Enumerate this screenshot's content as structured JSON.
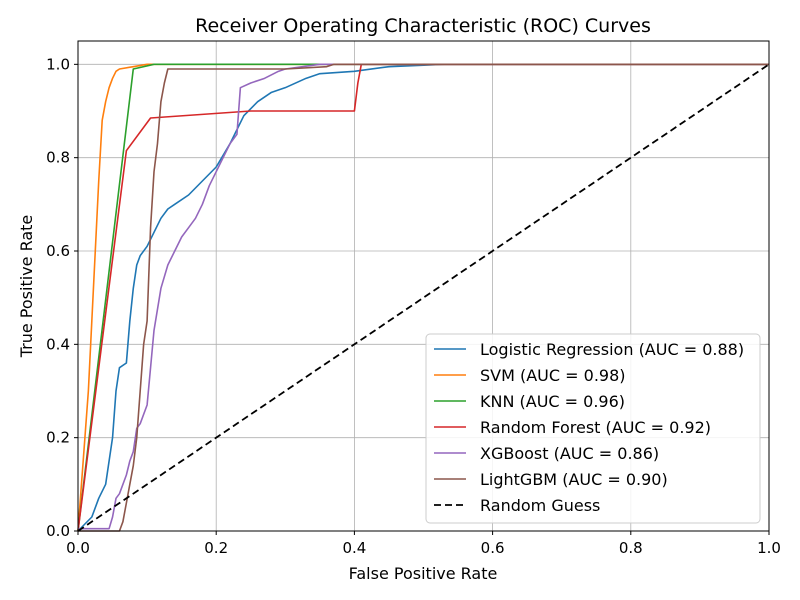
{
  "chart_data": {
    "type": "line",
    "title": "Receiver Operating Characteristic (ROC) Curves",
    "xlabel": "False Positive Rate",
    "ylabel": "True Positive Rate",
    "xlim": [
      0,
      1
    ],
    "ylim": [
      0,
      1.05
    ],
    "xticks": [
      "0.0",
      "0.2",
      "0.4",
      "0.6",
      "0.8",
      "1.0"
    ],
    "yticks": [
      "0.0",
      "0.2",
      "0.4",
      "0.6",
      "0.8",
      "1.0"
    ],
    "grid": true,
    "legend_position": "bottom-right",
    "series": [
      {
        "name": "Logistic Regression (AUC = 0.88)",
        "color": "#1f77b4",
        "dash": false,
        "points": [
          [
            0,
            0
          ],
          [
            0.02,
            0.03
          ],
          [
            0.03,
            0.07
          ],
          [
            0.04,
            0.1
          ],
          [
            0.05,
            0.2
          ],
          [
            0.055,
            0.3
          ],
          [
            0.06,
            0.35
          ],
          [
            0.07,
            0.36
          ],
          [
            0.075,
            0.45
          ],
          [
            0.08,
            0.52
          ],
          [
            0.085,
            0.57
          ],
          [
            0.09,
            0.59
          ],
          [
            0.1,
            0.61
          ],
          [
            0.11,
            0.64
          ],
          [
            0.12,
            0.67
          ],
          [
            0.13,
            0.69
          ],
          [
            0.14,
            0.7
          ],
          [
            0.16,
            0.72
          ],
          [
            0.18,
            0.75
          ],
          [
            0.2,
            0.78
          ],
          [
            0.22,
            0.83
          ],
          [
            0.24,
            0.89
          ],
          [
            0.26,
            0.92
          ],
          [
            0.28,
            0.94
          ],
          [
            0.3,
            0.95
          ],
          [
            0.33,
            0.97
          ],
          [
            0.35,
            0.98
          ],
          [
            0.4,
            0.985
          ],
          [
            0.45,
            0.995
          ],
          [
            0.53,
            1.0
          ],
          [
            1.0,
            1.0
          ]
        ]
      },
      {
        "name": "SVM (AUC = 0.98)",
        "color": "#ff7f0e",
        "dash": false,
        "points": [
          [
            0,
            0
          ],
          [
            0.005,
            0.1
          ],
          [
            0.01,
            0.2
          ],
          [
            0.015,
            0.3
          ],
          [
            0.02,
            0.45
          ],
          [
            0.025,
            0.6
          ],
          [
            0.03,
            0.75
          ],
          [
            0.035,
            0.88
          ],
          [
            0.04,
            0.92
          ],
          [
            0.045,
            0.95
          ],
          [
            0.05,
            0.97
          ],
          [
            0.055,
            0.985
          ],
          [
            0.06,
            0.99
          ],
          [
            0.08,
            0.995
          ],
          [
            0.1,
            1.0
          ],
          [
            1.0,
            1.0
          ]
        ]
      },
      {
        "name": "KNN (AUC = 0.96)",
        "color": "#2ca02c",
        "dash": false,
        "points": [
          [
            0,
            0
          ],
          [
            0.08,
            0.99
          ],
          [
            0.11,
            1.0
          ],
          [
            1.0,
            1.0
          ]
        ]
      },
      {
        "name": "Random Forest (AUC = 0.92)",
        "color": "#d62728",
        "dash": false,
        "points": [
          [
            0,
            0
          ],
          [
            0.07,
            0.815
          ],
          [
            0.105,
            0.885
          ],
          [
            0.25,
            0.9
          ],
          [
            0.4,
            0.9
          ],
          [
            0.405,
            0.96
          ],
          [
            0.41,
            1.0
          ],
          [
            1.0,
            1.0
          ]
        ]
      },
      {
        "name": "XGBoost (AUC = 0.86)",
        "color": "#9467bd",
        "dash": false,
        "points": [
          [
            0,
            0.005
          ],
          [
            0.045,
            0.005
          ],
          [
            0.05,
            0.03
          ],
          [
            0.055,
            0.07
          ],
          [
            0.06,
            0.08
          ],
          [
            0.07,
            0.12
          ],
          [
            0.075,
            0.15
          ],
          [
            0.08,
            0.17
          ],
          [
            0.085,
            0.22
          ],
          [
            0.09,
            0.23
          ],
          [
            0.1,
            0.27
          ],
          [
            0.105,
            0.35
          ],
          [
            0.11,
            0.43
          ],
          [
            0.12,
            0.52
          ],
          [
            0.13,
            0.57
          ],
          [
            0.14,
            0.6
          ],
          [
            0.15,
            0.63
          ],
          [
            0.16,
            0.65
          ],
          [
            0.17,
            0.67
          ],
          [
            0.18,
            0.7
          ],
          [
            0.19,
            0.74
          ],
          [
            0.2,
            0.77
          ],
          [
            0.21,
            0.8
          ],
          [
            0.22,
            0.83
          ],
          [
            0.23,
            0.85
          ],
          [
            0.235,
            0.95
          ],
          [
            0.25,
            0.96
          ],
          [
            0.27,
            0.97
          ],
          [
            0.29,
            0.985
          ],
          [
            0.3,
            0.99
          ],
          [
            0.35,
            1.0
          ],
          [
            1.0,
            1.0
          ]
        ]
      },
      {
        "name": "LightGBM (AUC = 0.90)",
        "color": "#8c564b",
        "dash": false,
        "points": [
          [
            0,
            0
          ],
          [
            0.06,
            0.0
          ],
          [
            0.065,
            0.02
          ],
          [
            0.07,
            0.06
          ],
          [
            0.075,
            0.1
          ],
          [
            0.08,
            0.14
          ],
          [
            0.085,
            0.2
          ],
          [
            0.09,
            0.3
          ],
          [
            0.095,
            0.4
          ],
          [
            0.1,
            0.45
          ],
          [
            0.105,
            0.65
          ],
          [
            0.11,
            0.77
          ],
          [
            0.115,
            0.83
          ],
          [
            0.12,
            0.92
          ],
          [
            0.125,
            0.96
          ],
          [
            0.13,
            0.99
          ],
          [
            0.2,
            0.99
          ],
          [
            0.3,
            0.99
          ],
          [
            0.36,
            0.995
          ],
          [
            0.37,
            1.0
          ],
          [
            1.0,
            1.0
          ]
        ]
      },
      {
        "name": "Random Guess",
        "color": "#000000",
        "dash": true,
        "points": [
          [
            0,
            0
          ],
          [
            1,
            1
          ]
        ]
      }
    ]
  }
}
